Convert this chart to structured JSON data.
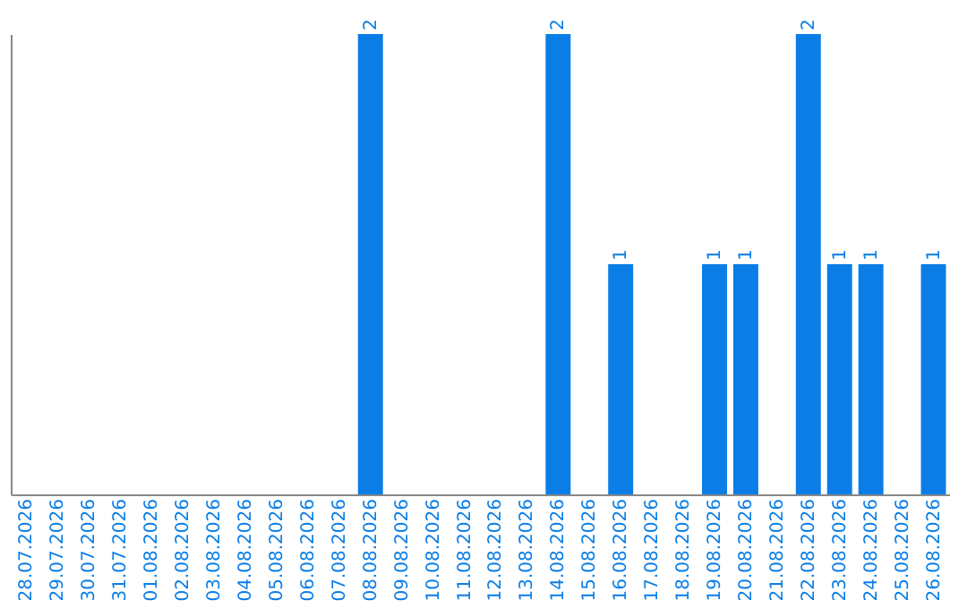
{
  "chart_data": {
    "type": "bar",
    "categories": [
      "28.07.2026",
      "29.07.2026",
      "30.07.2026",
      "31.07.2026",
      "01.08.2026",
      "02.08.2026",
      "03.08.2026",
      "04.08.2026",
      "05.08.2026",
      "06.08.2026",
      "07.08.2026",
      "08.08.2026",
      "09.08.2026",
      "10.08.2026",
      "11.08.2026",
      "12.08.2026",
      "13.08.2026",
      "14.08.2026",
      "15.08.2026",
      "16.08.2026",
      "17.08.2026",
      "18.08.2026",
      "19.08.2026",
      "20.08.2026",
      "21.08.2026",
      "22.08.2026",
      "23.08.2026",
      "24.08.2026",
      "25.08.2026",
      "26.08.2026"
    ],
    "values": [
      0,
      0,
      0,
      0,
      0,
      0,
      0,
      0,
      0,
      0,
      0,
      2,
      0,
      0,
      0,
      0,
      0,
      2,
      0,
      1,
      0,
      0,
      1,
      1,
      0,
      2,
      1,
      1,
      0,
      1
    ],
    "value_labels": [
      null,
      null,
      null,
      null,
      null,
      null,
      null,
      null,
      null,
      null,
      null,
      "2",
      null,
      null,
      null,
      null,
      null,
      "2",
      null,
      "1",
      null,
      null,
      "1",
      "1",
      null,
      "2",
      "1",
      "1",
      null,
      "1"
    ],
    "color": "#0a7ee6",
    "tick_labels": "x",
    "grid": false
  }
}
